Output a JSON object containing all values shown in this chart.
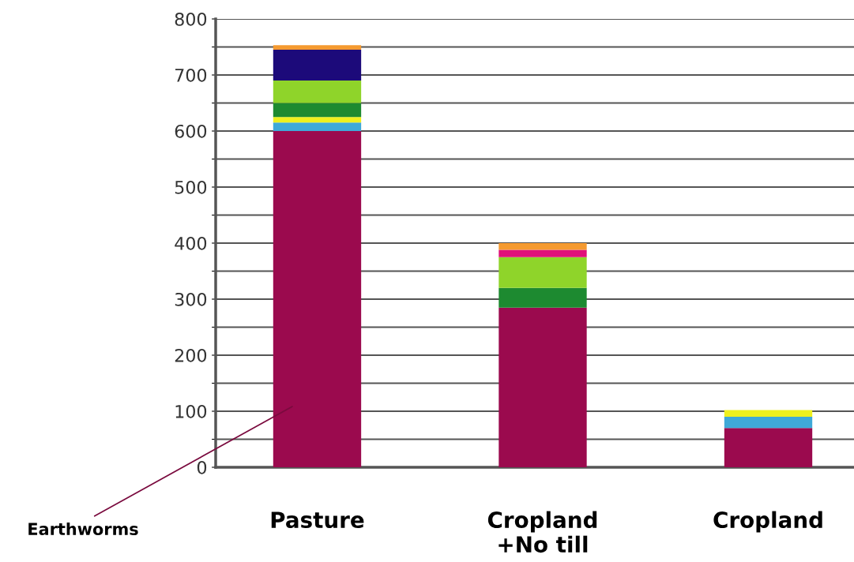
{
  "chart_data": {
    "type": "bar",
    "stacked": true,
    "categories": [
      "Pasture",
      "Cropland\n+No till",
      "Cropland"
    ],
    "series": [
      {
        "color": "#9b0a4e",
        "values": [
          600,
          285,
          70
        ]
      },
      {
        "color": "#3fa9d8",
        "values": [
          15,
          0,
          20
        ]
      },
      {
        "color": "#eef01e",
        "values": [
          10,
          0,
          12
        ]
      },
      {
        "color": "#1d8a30",
        "values": [
          25,
          35,
          0
        ]
      },
      {
        "color": "#8fd42a",
        "values": [
          40,
          55,
          0
        ]
      },
      {
        "color": "#e0107a",
        "values": [
          0,
          13,
          0
        ]
      },
      {
        "color": "#1c0a7a",
        "values": [
          55,
          0,
          0
        ]
      },
      {
        "color": "#f59a30",
        "values": [
          8,
          12,
          0
        ]
      }
    ],
    "ylim": [
      0,
      800
    ],
    "yticks": [
      0,
      {
        "value": 50,
        "label": null
      },
      100,
      {
        "value": 150,
        "label": null
      },
      200,
      {
        "value": 250,
        "label": null
      },
      300,
      {
        "value": 350,
        "label": null
      },
      400,
      {
        "value": 450,
        "label": null
      },
      500,
      {
        "value": 550,
        "label": null
      },
      600,
      {
        "value": 650,
        "label": null
      },
      700,
      {
        "value": 750,
        "label": null
      },
      800
    ],
    "grid": "y",
    "annotations": [
      "Earthworms"
    ]
  }
}
